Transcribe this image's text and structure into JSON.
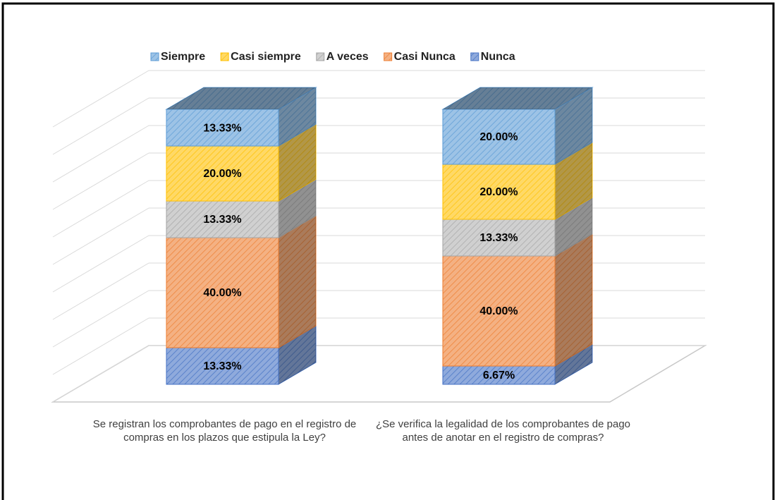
{
  "chart_data": {
    "type": "bar3d_stacked",
    "categories": [
      "Se registran los comprobantes de pago en el registro de compras en los plazos que estipula la Ley?",
      "¿Se verifica la legalidad de los comprobantes de pago antes de anotar en el registro de compras?"
    ],
    "series": [
      {
        "name": "Siempre",
        "color": "#9dc3e6",
        "edge": "#5b9bd5",
        "values": [
          13.33,
          20
        ],
        "value_labels": [
          "13.33%",
          "20.00%"
        ]
      },
      {
        "name": "Casi siempre",
        "color": "#ffd966",
        "edge": "#ffc000",
        "values": [
          20,
          20
        ],
        "value_labels": [
          "20.00%",
          "20.00%"
        ]
      },
      {
        "name": "A veces",
        "color": "#d0d0d0",
        "edge": "#a5a5a5",
        "values": [
          13.33,
          13.33
        ],
        "value_labels": [
          "13.33%",
          "13.33%"
        ]
      },
      {
        "name": "Casi Nunca",
        "color": "#f4b183",
        "edge": "#ed7d31",
        "values": [
          40,
          40
        ],
        "value_labels": [
          "40.00%",
          "40.00%"
        ]
      },
      {
        "name": "Nunca",
        "color": "#8faadc",
        "edge": "#4472c4",
        "values": [
          13.33,
          6.67
        ],
        "value_labels": [
          "13.33%",
          "6.67%"
        ]
      }
    ],
    "ylim": [
      0,
      100
    ],
    "yticks": [
      0,
      10,
      20,
      30,
      40,
      50,
      60,
      70,
      80,
      90,
      100
    ],
    "grid": true,
    "legend": "top"
  }
}
